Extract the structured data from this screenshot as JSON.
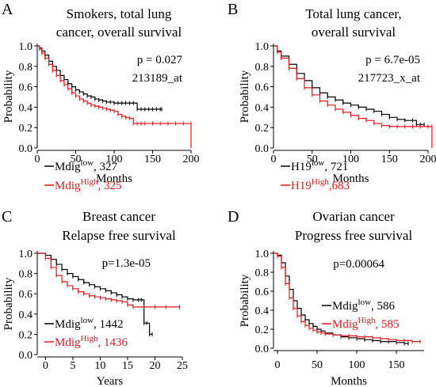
{
  "colors": {
    "low": "#000000",
    "high": "#e8161b"
  },
  "chart_data": [
    {
      "id": "A",
      "type": "line",
      "panel_letter": "A",
      "title": [
        "Smokers, total lung",
        "cancer, overall survival"
      ],
      "xlabel": "Months",
      "ylabel": "Probability",
      "xlim": [
        0,
        200
      ],
      "ylim": [
        0,
        1
      ],
      "xticks": [
        "0",
        "50",
        "100",
        "150",
        "200"
      ],
      "yticks": [
        "0.0",
        "0.2",
        "0.4",
        "0.6",
        "0.8",
        "1.0"
      ],
      "annotations": [
        "p = 0.027",
        "213189_at"
      ],
      "legend": [
        {
          "name": "Mdig",
          "sup": "low",
          "count": "327",
          "sep": ",  "
        },
        {
          "name": "Mdig",
          "sup": "High",
          "count": "325",
          "sep": ", "
        }
      ],
      "series": [
        {
          "x": [
            0,
            3,
            6,
            10,
            15,
            20,
            25,
            30,
            35,
            40,
            45,
            50,
            55,
            60,
            65,
            70,
            75,
            80,
            85,
            90,
            95,
            100,
            105,
            110,
            115,
            120,
            125,
            130,
            135,
            140,
            145,
            150,
            155,
            160,
            162
          ],
          "y": [
            1.0,
            0.98,
            0.95,
            0.91,
            0.85,
            0.8,
            0.76,
            0.71,
            0.67,
            0.63,
            0.6,
            0.57,
            0.55,
            0.53,
            0.51,
            0.5,
            0.48,
            0.47,
            0.46,
            0.45,
            0.45,
            0.44,
            0.44,
            0.44,
            0.44,
            0.44,
            0.44,
            0.38,
            0.38,
            0.38,
            0.38,
            0.38,
            0.38,
            0.38,
            0.38
          ]
        },
        {
          "x": [
            0,
            3,
            6,
            10,
            15,
            20,
            25,
            30,
            35,
            40,
            45,
            50,
            55,
            60,
            65,
            70,
            75,
            80,
            85,
            90,
            95,
            100,
            105,
            110,
            115,
            120,
            125,
            130,
            135,
            140,
            150,
            160,
            170,
            180,
            190,
            200,
            200
          ],
          "y": [
            1.0,
            0.97,
            0.93,
            0.88,
            0.82,
            0.76,
            0.71,
            0.66,
            0.62,
            0.58,
            0.54,
            0.51,
            0.48,
            0.46,
            0.44,
            0.42,
            0.41,
            0.4,
            0.39,
            0.38,
            0.37,
            0.36,
            0.33,
            0.31,
            0.3,
            0.29,
            0.24,
            0.24,
            0.24,
            0.24,
            0.24,
            0.24,
            0.24,
            0.24,
            0.24,
            0.24,
            0.0
          ]
        }
      ]
    },
    {
      "id": "B",
      "type": "line",
      "panel_letter": "B",
      "title": [
        "Total lung cancer,",
        "overall survival"
      ],
      "xlabel": "Months",
      "ylabel": "Probability",
      "xlim": [
        0,
        200
      ],
      "ylim": [
        0,
        1
      ],
      "xticks": [
        "0",
        "50",
        "100",
        "150",
        "200"
      ],
      "yticks": [
        "0.0",
        "0.2",
        "0.4",
        "0.6",
        "0.8",
        "1.0"
      ],
      "annotations": [
        "p = 6.7e-05",
        "217723_x_at"
      ],
      "legend": [
        {
          "name": "H19",
          "sup": "low",
          "count": "721",
          "sep": ",  "
        },
        {
          "name": "H19",
          "sup": "High",
          "count": "683",
          "sep": ","
        }
      ],
      "series": [
        {
          "x": [
            0,
            5,
            10,
            20,
            30,
            40,
            50,
            60,
            70,
            80,
            90,
            100,
            110,
            120,
            130,
            140,
            150,
            160,
            170,
            180,
            185,
            190,
            195
          ],
          "y": [
            1.0,
            0.95,
            0.9,
            0.82,
            0.73,
            0.66,
            0.59,
            0.54,
            0.5,
            0.47,
            0.44,
            0.42,
            0.4,
            0.38,
            0.36,
            0.33,
            0.3,
            0.28,
            0.27,
            0.27,
            0.23,
            0.23,
            0.23
          ]
        },
        {
          "x": [
            0,
            5,
            10,
            20,
            30,
            40,
            50,
            60,
            70,
            80,
            90,
            100,
            110,
            120,
            130,
            140,
            150,
            160,
            170,
            180,
            190,
            200,
            205,
            205
          ],
          "y": [
            1.0,
            0.94,
            0.88,
            0.78,
            0.68,
            0.59,
            0.52,
            0.46,
            0.42,
            0.38,
            0.35,
            0.32,
            0.29,
            0.27,
            0.24,
            0.22,
            0.21,
            0.21,
            0.21,
            0.21,
            0.21,
            0.21,
            0.21,
            0.0
          ]
        }
      ]
    },
    {
      "id": "C",
      "type": "line",
      "panel_letter": "C",
      "title": [
        "Breast cancer",
        "Relapse free survival"
      ],
      "xlabel": "Years",
      "ylabel": "Probability",
      "xlim": [
        -1.5,
        25
      ],
      "ylim": [
        0,
        1
      ],
      "xticks": [
        "0",
        "5",
        "10",
        "15",
        "20",
        "25"
      ],
      "yticks": [
        "0.0",
        "0.2",
        "0.4",
        "0.6",
        "0.8",
        "1.0"
      ],
      "annotations": [
        "p=1.3e-05"
      ],
      "legend": [
        {
          "name": "Mdig",
          "sup": "low",
          "count": "1442",
          "sep": ",  "
        },
        {
          "name": "Mdig",
          "sup": "High",
          "count": "1436",
          "sep": ", "
        }
      ],
      "series": [
        {
          "x": [
            -1.5,
            0,
            1,
            2,
            3,
            4,
            5,
            6,
            7,
            8,
            9,
            10,
            11,
            12,
            13,
            14,
            15,
            16,
            17,
            17.5,
            18,
            18.5,
            19,
            19.5
          ],
          "y": [
            1.0,
            0.98,
            0.94,
            0.89,
            0.84,
            0.8,
            0.77,
            0.74,
            0.71,
            0.69,
            0.67,
            0.65,
            0.63,
            0.61,
            0.59,
            0.57,
            0.55,
            0.54,
            0.54,
            0.54,
            0.31,
            0.31,
            0.2,
            0.2
          ]
        },
        {
          "x": [
            -1.5,
            0,
            1,
            2,
            3,
            4,
            5,
            6,
            7,
            8,
            9,
            10,
            11,
            12,
            13,
            14,
            15,
            16,
            18,
            20,
            22,
            24.5
          ],
          "y": [
            1.0,
            0.95,
            0.86,
            0.78,
            0.72,
            0.68,
            0.65,
            0.62,
            0.6,
            0.58,
            0.57,
            0.56,
            0.55,
            0.54,
            0.53,
            0.52,
            0.49,
            0.47,
            0.47,
            0.47,
            0.47,
            0.47
          ]
        }
      ]
    },
    {
      "id": "D",
      "type": "line",
      "panel_letter": "D",
      "title": [
        "Ovarian cancer",
        "Progress free survival"
      ],
      "xlabel": "Months",
      "ylabel": "Probability",
      "xlim": [
        -5,
        185
      ],
      "ylim": [
        0,
        1
      ],
      "xticks": [
        "0",
        "50",
        "100",
        "150"
      ],
      "yticks": [
        "0.0",
        "0.2",
        "0.4",
        "0.6",
        "0.8",
        "1.0"
      ],
      "annotations": [
        "p=0.00064"
      ],
      "legend": [
        {
          "name": "Mdig",
          "sup": "low",
          "count": "586",
          "sep": ",  "
        },
        {
          "name": "Mdig",
          "sup": "High",
          "count": "585",
          "sep": ", "
        }
      ],
      "series": [
        {
          "x": [
            -5,
            0,
            5,
            10,
            15,
            20,
            25,
            30,
            35,
            40,
            45,
            50,
            55,
            60,
            70,
            80,
            90,
            100,
            110,
            120,
            130,
            140,
            150,
            160,
            165
          ],
          "y": [
            1.0,
            0.98,
            0.9,
            0.76,
            0.62,
            0.5,
            0.42,
            0.35,
            0.3,
            0.26,
            0.23,
            0.2,
            0.18,
            0.16,
            0.14,
            0.12,
            0.11,
            0.1,
            0.09,
            0.08,
            0.07,
            0.07,
            0.06,
            0.05,
            0.05
          ]
        },
        {
          "x": [
            -5,
            0,
            5,
            10,
            15,
            20,
            25,
            30,
            35,
            40,
            45,
            50,
            55,
            60,
            70,
            80,
            90,
            100,
            110,
            120,
            130,
            140,
            150,
            160,
            170,
            180
          ],
          "y": [
            1.0,
            0.97,
            0.85,
            0.68,
            0.53,
            0.42,
            0.34,
            0.28,
            0.24,
            0.21,
            0.19,
            0.17,
            0.16,
            0.15,
            0.14,
            0.13,
            0.13,
            0.12,
            0.12,
            0.11,
            0.1,
            0.09,
            0.08,
            0.08,
            0.07,
            0.07
          ]
        }
      ]
    }
  ]
}
